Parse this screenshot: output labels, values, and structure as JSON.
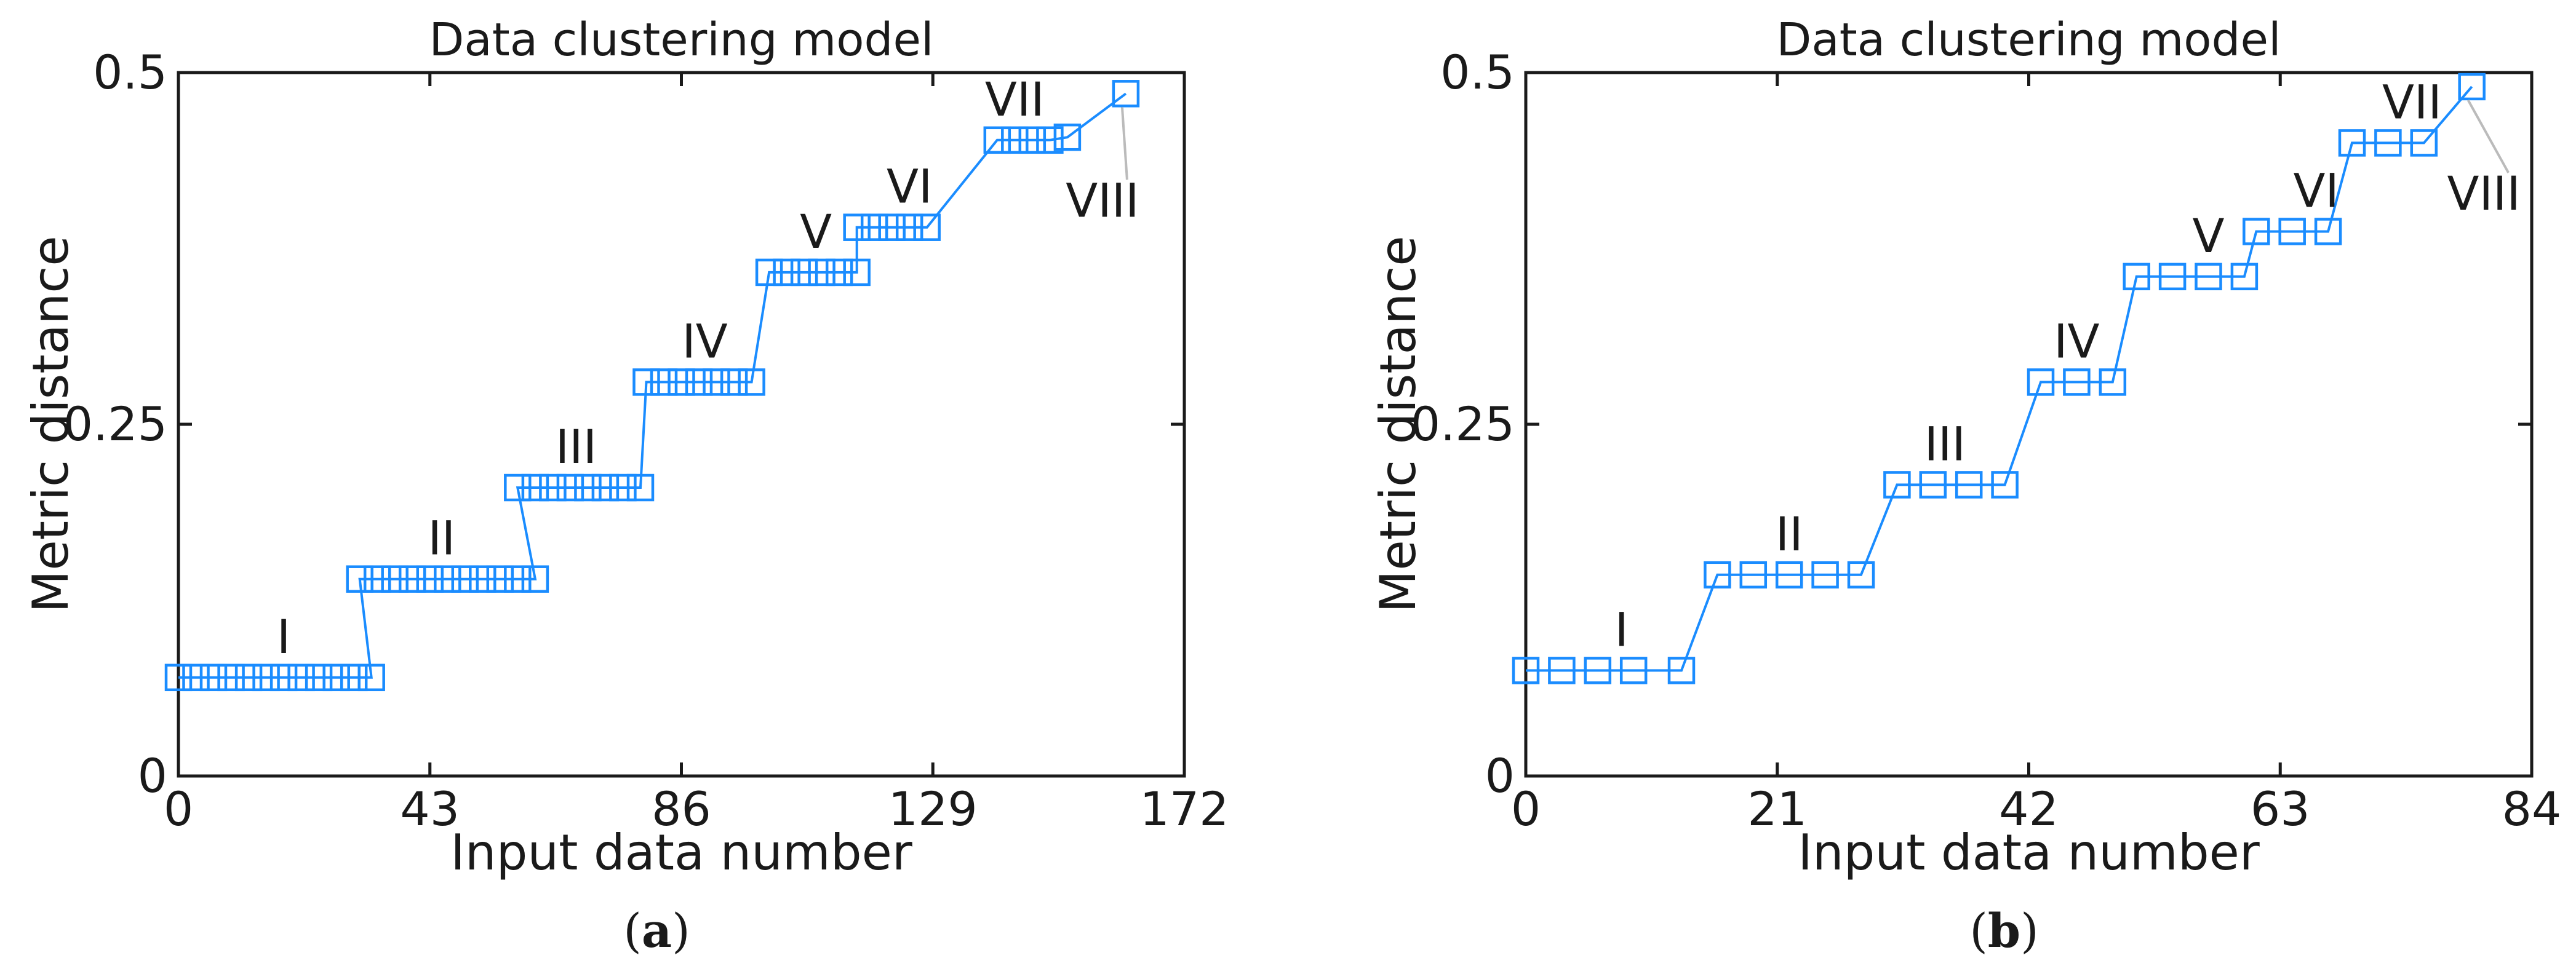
{
  "chart_data": [
    {
      "type": "line",
      "title": "Data clustering model",
      "xlabel": "Input data number",
      "ylabel": "Metric distance",
      "xlim": [
        0,
        172
      ],
      "ylim": [
        0,
        0.5
      ],
      "xticks": [
        "0",
        "43",
        "86",
        "129",
        "172"
      ],
      "yticks": [
        "0",
        "0.25",
        "0.5"
      ],
      "marker": "square",
      "color": "#1a8cff",
      "x": [
        0,
        3,
        6,
        9,
        12,
        15,
        18,
        21,
        24,
        27,
        30,
        33,
        31,
        34,
        37,
        40,
        43,
        46,
        49,
        52,
        55,
        58,
        61,
        58,
        61,
        64,
        67,
        70,
        73,
        76,
        79,
        80,
        83,
        86,
        89,
        92,
        95,
        98,
        101,
        104,
        107,
        110,
        113,
        116,
        116,
        119,
        122,
        125,
        128,
        140,
        143,
        146,
        149,
        152,
        162
      ],
      "y": [
        0.07,
        0.07,
        0.07,
        0.07,
        0.07,
        0.07,
        0.07,
        0.07,
        0.07,
        0.07,
        0.07,
        0.07,
        0.14,
        0.14,
        0.14,
        0.14,
        0.14,
        0.14,
        0.14,
        0.14,
        0.14,
        0.14,
        0.14,
        0.205,
        0.205,
        0.205,
        0.205,
        0.205,
        0.205,
        0.205,
        0.205,
        0.28,
        0.28,
        0.28,
        0.28,
        0.28,
        0.28,
        0.28,
        0.358,
        0.358,
        0.358,
        0.358,
        0.358,
        0.358,
        0.39,
        0.39,
        0.39,
        0.39,
        0.39,
        0.452,
        0.452,
        0.452,
        0.452,
        0.454,
        0.485
      ],
      "annotations": [
        {
          "text": "I",
          "x": 18,
          "y": 0.07
        },
        {
          "text": "II",
          "x": 45,
          "y": 0.14
        },
        {
          "text": "III",
          "x": 68,
          "y": 0.205
        },
        {
          "text": "IV",
          "x": 90,
          "y": 0.28
        },
        {
          "text": "V",
          "x": 109,
          "y": 0.358
        },
        {
          "text": "VI",
          "x": 125,
          "y": 0.39
        },
        {
          "text": "VII",
          "x": 143,
          "y": 0.452
        },
        {
          "text": "VIII",
          "x": 158,
          "y": 0.485
        }
      ],
      "caption_letter": "a"
    },
    {
      "type": "line",
      "title": "Data clustering model",
      "xlabel": "Input data number",
      "ylabel": "Metric distance",
      "xlim": [
        0,
        84
      ],
      "ylim": [
        0,
        0.5
      ],
      "xticks": [
        "0",
        "21",
        "42",
        "63",
        "84"
      ],
      "yticks": [
        "0",
        "0.25",
        "0.5"
      ],
      "marker": "square",
      "color": "#1a8cff",
      "x": [
        0,
        3,
        6,
        9,
        13,
        16,
        19,
        22,
        25,
        28,
        31,
        34,
        37,
        40,
        43,
        46,
        49,
        51,
        54,
        57,
        60,
        61,
        64,
        67,
        69,
        72,
        75,
        79
      ],
      "y": [
        0.075,
        0.075,
        0.075,
        0.075,
        0.075,
        0.143,
        0.143,
        0.143,
        0.143,
        0.143,
        0.207,
        0.207,
        0.207,
        0.207,
        0.28,
        0.28,
        0.28,
        0.355,
        0.355,
        0.355,
        0.355,
        0.387,
        0.387,
        0.387,
        0.45,
        0.45,
        0.45,
        0.49
      ],
      "annotations": [
        {
          "text": "I",
          "x": 8,
          "y": 0.075
        },
        {
          "text": "II",
          "x": 22,
          "y": 0.143
        },
        {
          "text": "III",
          "x": 35,
          "y": 0.207
        },
        {
          "text": "IV",
          "x": 46,
          "y": 0.28
        },
        {
          "text": "V",
          "x": 57,
          "y": 0.355
        },
        {
          "text": "VI",
          "x": 66,
          "y": 0.387
        },
        {
          "text": "VII",
          "x": 74,
          "y": 0.45
        },
        {
          "text": "VIII",
          "x": 80,
          "y": 0.49
        }
      ],
      "caption_letter": "b"
    }
  ]
}
